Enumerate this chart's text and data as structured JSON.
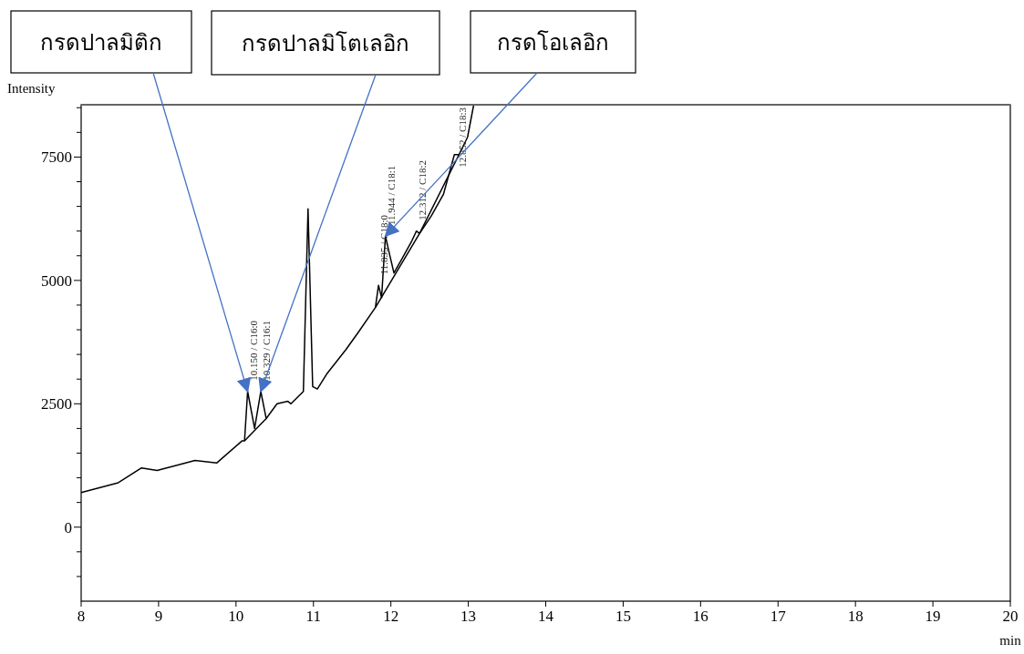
{
  "chart_data": {
    "type": "line",
    "xlabel": "min",
    "ylabel": "Intensity",
    "xlim": [
      8,
      20
    ],
    "xticks": [
      8,
      9,
      10,
      11,
      12,
      13,
      14,
      15,
      16,
      17,
      18,
      19,
      20
    ],
    "ylim": [
      -1500,
      8560
    ],
    "yticks": [
      {
        "value": -1000,
        "label": null
      },
      {
        "value": -500,
        "label": null
      },
      0,
      {
        "value": 500,
        "label": null
      },
      {
        "value": 1000,
        "label": null
      },
      {
        "value": 1500,
        "label": null
      },
      {
        "value": 2000,
        "label": null
      },
      2500,
      {
        "value": 3000,
        "label": null
      },
      {
        "value": 3500,
        "label": null
      },
      {
        "value": 4000,
        "label": null
      },
      {
        "value": 4500,
        "label": null
      },
      5000,
      {
        "value": 5500,
        "label": null
      },
      {
        "value": 6000,
        "label": null
      },
      {
        "value": 6500,
        "label": null
      },
      {
        "value": 7000,
        "label": null
      },
      7500,
      {
        "value": 8000,
        "label": null
      },
      {
        "value": 8500,
        "label": null
      }
    ],
    "series": [
      {
        "color": "#000000",
        "x": [
          8.0,
          8.48,
          8.78,
          8.98,
          9.47,
          9.75,
          10.08,
          10.11,
          10.15,
          10.24,
          10.32,
          10.39,
          10.53,
          10.67,
          10.71,
          10.87,
          10.93,
          10.99,
          11.05,
          11.17,
          11.42,
          11.58,
          11.8,
          11.84,
          11.88,
          11.93,
          11.98,
          12.04,
          12.13,
          12.27,
          12.33,
          12.37,
          12.52,
          12.68,
          12.82,
          12.88,
          12.99,
          13.07
        ],
        "values": [
          700,
          900,
          1200,
          1150,
          1350,
          1300,
          1750,
          1750,
          2750,
          2000,
          2750,
          2200,
          2500,
          2550,
          2500,
          2750,
          6450,
          2850,
          2800,
          3100,
          3600,
          3950,
          4450,
          4900,
          4650,
          5900,
          5550,
          5150,
          5400,
          5800,
          6000,
          5950,
          6300,
          6750,
          7550,
          7550,
          7900,
          8560
        ]
      },
      {
        "color": "#000000",
        "x": [
          10.11,
          10.39,
          null,
          11.8,
          12.37,
          12.88
        ],
        "values": [
          1750,
          2200,
          null,
          4450,
          5950,
          7550
        ]
      }
    ],
    "annotations": [
      {
        "text": "10.150 / C16:0",
        "x": 10.15,
        "y": 2750
      },
      {
        "text": "10.329 / C16:1",
        "x": 10.32,
        "y": 2750
      },
      {
        "text": "11.835 / C18:0",
        "x": 11.84,
        "y": 4900
      },
      {
        "text": "11.944 / C18:1",
        "x": 11.93,
        "y": 5900
      },
      {
        "text": "12.312 / C18:2",
        "x": 12.33,
        "y": 6000
      },
      {
        "text": "12.852 / C18:3",
        "x": 12.85,
        "y": 7550
      },
      {
        "text": "กรดปาลมิติก",
        "x": 10.15,
        "y": 2750
      },
      {
        "text": "กรดปาลมิโตเลอิก",
        "x": 10.32,
        "y": 2750
      },
      {
        "text": "กรดโอเลอิก",
        "x": 11.93,
        "y": 5900
      }
    ]
  }
}
